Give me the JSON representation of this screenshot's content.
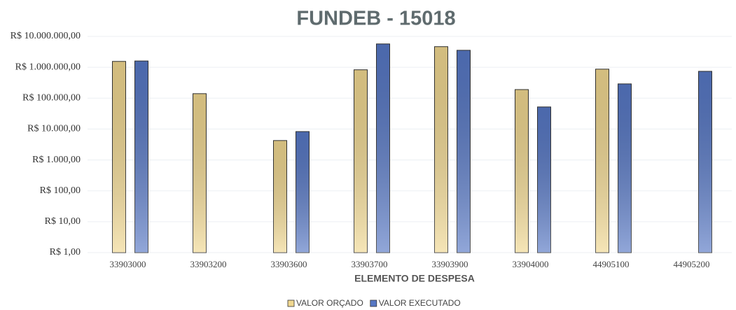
{
  "chart_data": {
    "type": "bar",
    "title": "FUNDEB - 15018",
    "xlabel": "ELEMENTO DE DESPESA",
    "categories": [
      "33903000",
      "33903200",
      "33903600",
      "33903700",
      "33903900",
      "33904000",
      "44905100",
      "44905200"
    ],
    "series": [
      {
        "name": "VALOR ORÇADO",
        "color": "#f0d790",
        "values": [
          1550000,
          140000,
          4250,
          830000,
          4650000,
          190000,
          870000,
          null
        ]
      },
      {
        "name": "VALOR EXECUTADO",
        "color": "#5677c4",
        "values": [
          1600000,
          null,
          8300,
          5700000,
          3550000,
          52000,
          290000,
          740000
        ]
      }
    ],
    "log_scale": true,
    "ylim": [
      1,
      10000000
    ],
    "yticks": [
      {
        "value": 1,
        "label": "R$ 1,00"
      },
      {
        "value": 10,
        "label": "R$ 10,00"
      },
      {
        "value": 100,
        "label": "R$ 100,00"
      },
      {
        "value": 1000,
        "label": "R$ 1.000,00"
      },
      {
        "value": 10000,
        "label": "R$ 10.000,00"
      },
      {
        "value": 100000,
        "label": "R$ 100.000,00"
      },
      {
        "value": 1000000,
        "label": "R$ 1.000.000,00"
      },
      {
        "value": 10000000,
        "label": "R$ 10.000.000,00"
      }
    ],
    "grid": true,
    "legend": "bottom"
  }
}
